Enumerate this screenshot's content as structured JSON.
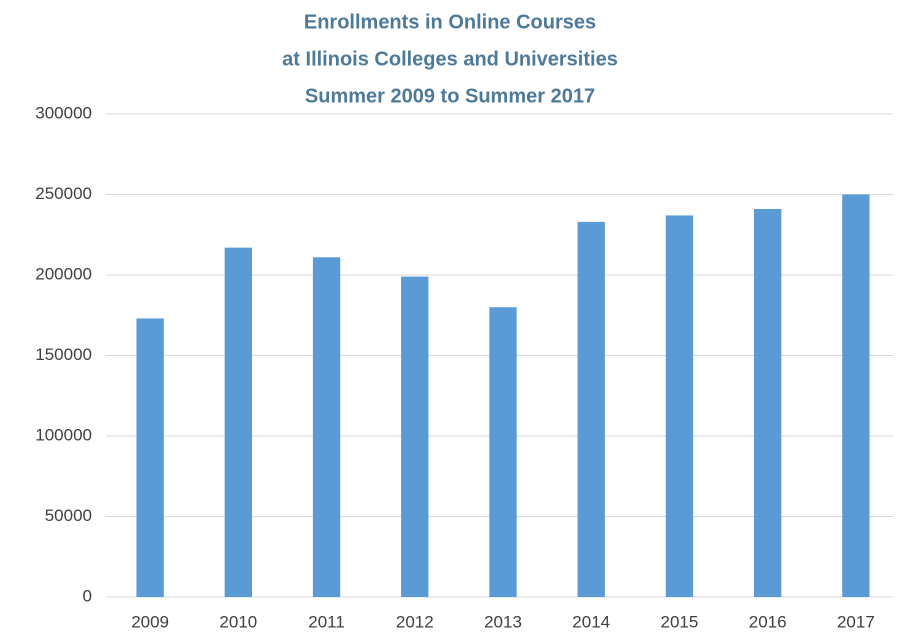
{
  "chart_data": {
    "type": "bar",
    "title": [
      "Enrollments in Online Courses",
      "at Illinois Colleges and Universities",
      "Summer 2009 to Summer 2017"
    ],
    "categories": [
      "2009",
      "2010",
      "2011",
      "2012",
      "2013",
      "2014",
      "2015",
      "2016",
      "2017"
    ],
    "values": [
      173000,
      217000,
      211000,
      199000,
      180000,
      233000,
      237000,
      241000,
      250000
    ],
    "color": "#5b9bd5",
    "ylim": [
      0,
      300000
    ],
    "yticks": [
      0,
      50000,
      100000,
      150000,
      200000,
      250000,
      300000
    ],
    "grid": true
  }
}
